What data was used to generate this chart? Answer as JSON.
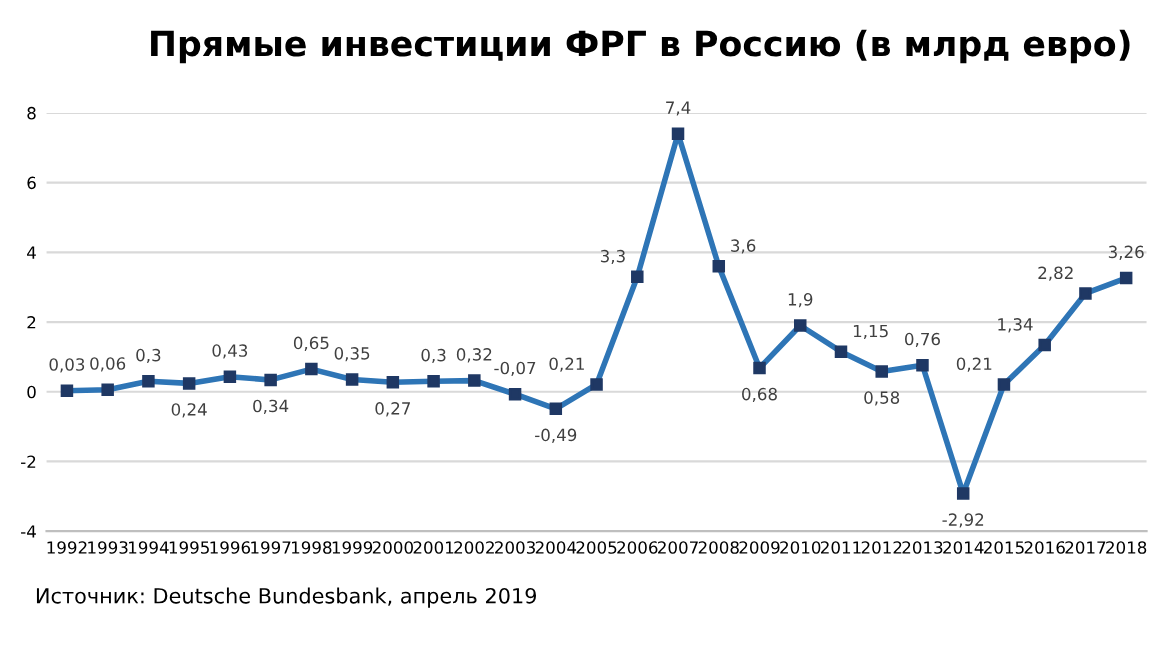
{
  "chart_data": {
    "type": "line",
    "title": "Прямые инвестиции ФРГ в Россию (в млрд евро)",
    "categories": [
      "1992",
      "1993",
      "1994",
      "1995",
      "1996",
      "1997",
      "1998",
      "1999",
      "2000",
      "2001",
      "2002",
      "2003",
      "2004",
      "2005",
      "2006",
      "2007",
      "2008",
      "2009",
      "2010",
      "2011",
      "2012",
      "2013",
      "2014",
      "2015",
      "2016",
      "2017",
      "2018"
    ],
    "series": [
      {
        "color": "#2e75b6",
        "values": [
          0.03,
          0.06,
          0.3,
          0.24,
          0.43,
          0.34,
          0.65,
          0.35,
          0.27,
          0.3,
          0.32,
          -0.07,
          -0.49,
          0.21,
          3.3,
          7.4,
          3.6,
          0.68,
          1.9,
          1.15,
          0.58,
          0.76,
          -2.92,
          0.21,
          1.34,
          2.82,
          3.26
        ],
        "value_labels": [
          "0,03",
          "0,06",
          "0,3",
          "0,24",
          "0,43",
          "0,34",
          "0,65",
          "0,35",
          "0,27",
          "0,3",
          "0,32",
          "-0,07",
          "-0,49",
          "0,21",
          "3,3",
          "7,4",
          "3,6",
          "0,68",
          "1,9",
          "1,15",
          "0,58",
          "0,76",
          "-2,92",
          "0,21",
          "1,34",
          "2,82",
          "3,26"
        ]
      }
    ],
    "ylim": [
      -4,
      8
    ],
    "yticks": [
      -4,
      -2,
      0,
      2,
      4,
      6,
      8
    ],
    "grid": "y",
    "marker": "square",
    "line_style": "solid",
    "annotations": [
      "Источник: Deutsche Bundesbank, апрель 2019"
    ]
  }
}
